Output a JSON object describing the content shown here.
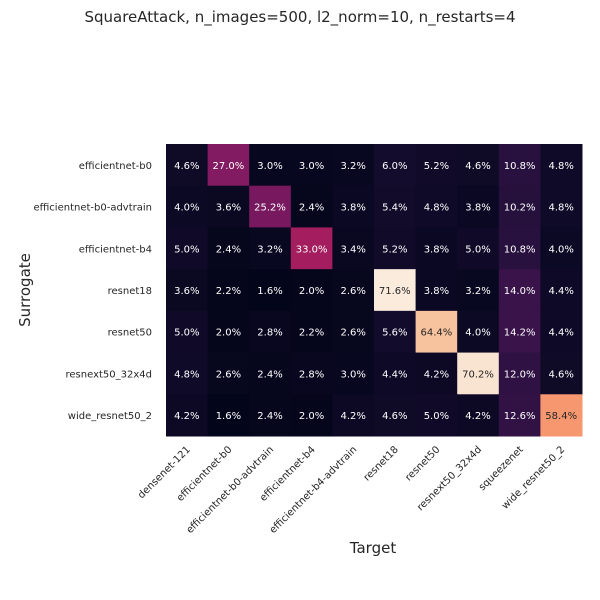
{
  "chart_data": {
    "type": "heatmap",
    "title": "SquareAttack, n_images=500, l2_norm=10, n_restarts=4",
    "xlabel": "Target",
    "ylabel": "Surrogate",
    "x_categories": [
      "densenet-121",
      "efficientnet-b0",
      "efficientnet-b0-advtrain",
      "efficientnet-b4",
      "efficientnet-b4-advtrain",
      "resnet18",
      "resnet50",
      "resnext50_32x4d",
      "squeezenet",
      "wide_resnet50_2"
    ],
    "y_categories": [
      "efficientnet-b0",
      "efficientnet-b0-advtrain",
      "efficientnet-b4",
      "resnet18",
      "resnet50",
      "resnext50_32x4d",
      "wide_resnet50_2"
    ],
    "values": [
      [
        4.6,
        27.0,
        3.0,
        3.0,
        3.2,
        6.0,
        5.2,
        4.6,
        10.8,
        4.8
      ],
      [
        4.0,
        3.6,
        25.2,
        2.4,
        3.8,
        5.4,
        4.8,
        3.8,
        10.2,
        4.8
      ],
      [
        5.0,
        2.4,
        3.2,
        33.0,
        3.4,
        5.2,
        3.8,
        5.0,
        10.8,
        4.0
      ],
      [
        3.6,
        2.2,
        1.6,
        2.0,
        2.6,
        71.6,
        3.8,
        3.2,
        14.0,
        4.4
      ],
      [
        5.0,
        2.0,
        2.8,
        2.2,
        2.6,
        5.6,
        64.4,
        4.0,
        14.2,
        4.4
      ],
      [
        4.8,
        2.6,
        2.4,
        2.8,
        3.0,
        4.4,
        4.2,
        70.2,
        12.0,
        4.6
      ],
      [
        4.2,
        1.6,
        2.4,
        2.0,
        4.2,
        4.6,
        5.0,
        4.2,
        12.6,
        58.4
      ]
    ],
    "value_format": "percent",
    "colormap": "rocket",
    "grid": false,
    "legend": "none"
  }
}
